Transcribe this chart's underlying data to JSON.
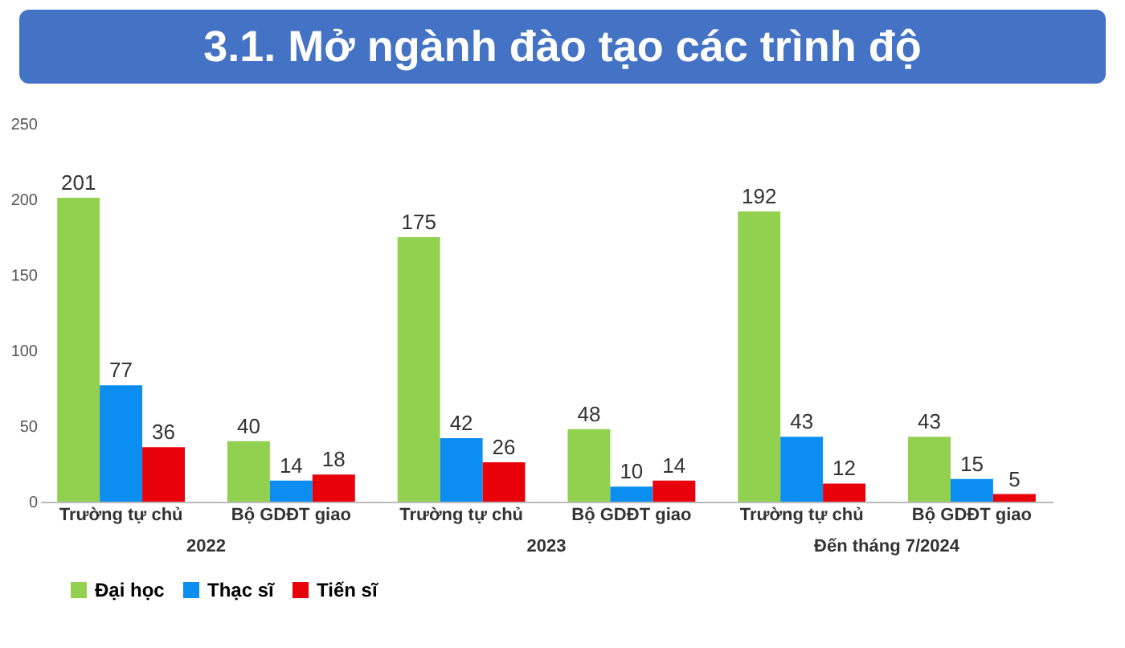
{
  "chart_data": {
    "type": "bar",
    "title": "3.1. Mở ngành đào tạo các trình độ",
    "categories": [
      "Trường tự chủ",
      "Bộ GDĐT giao",
      "Trường tự chủ",
      "Bộ GDĐT giao",
      "Trường tự chủ",
      "Bộ GDĐT giao"
    ],
    "series": [
      {
        "name": "Đại học",
        "color": "#92d050",
        "values": [
          201,
          40,
          175,
          48,
          192,
          43
        ]
      },
      {
        "name": "Thạc sĩ",
        "color": "#0b8ef0",
        "values": [
          77,
          14,
          42,
          10,
          43,
          15
        ]
      },
      {
        "name": "Tiến sĩ",
        "color": "#e8000b",
        "values": [
          36,
          18,
          26,
          14,
          12,
          5
        ]
      }
    ],
    "annotations": [
      "2022",
      "2023",
      "Đến tháng 7/2024"
    ],
    "ylim": [
      0,
      250
    ],
    "yticks": [
      0,
      50,
      100,
      150,
      200,
      250
    ],
    "grid": false,
    "legend": "bottom",
    "data_labels": true
  }
}
